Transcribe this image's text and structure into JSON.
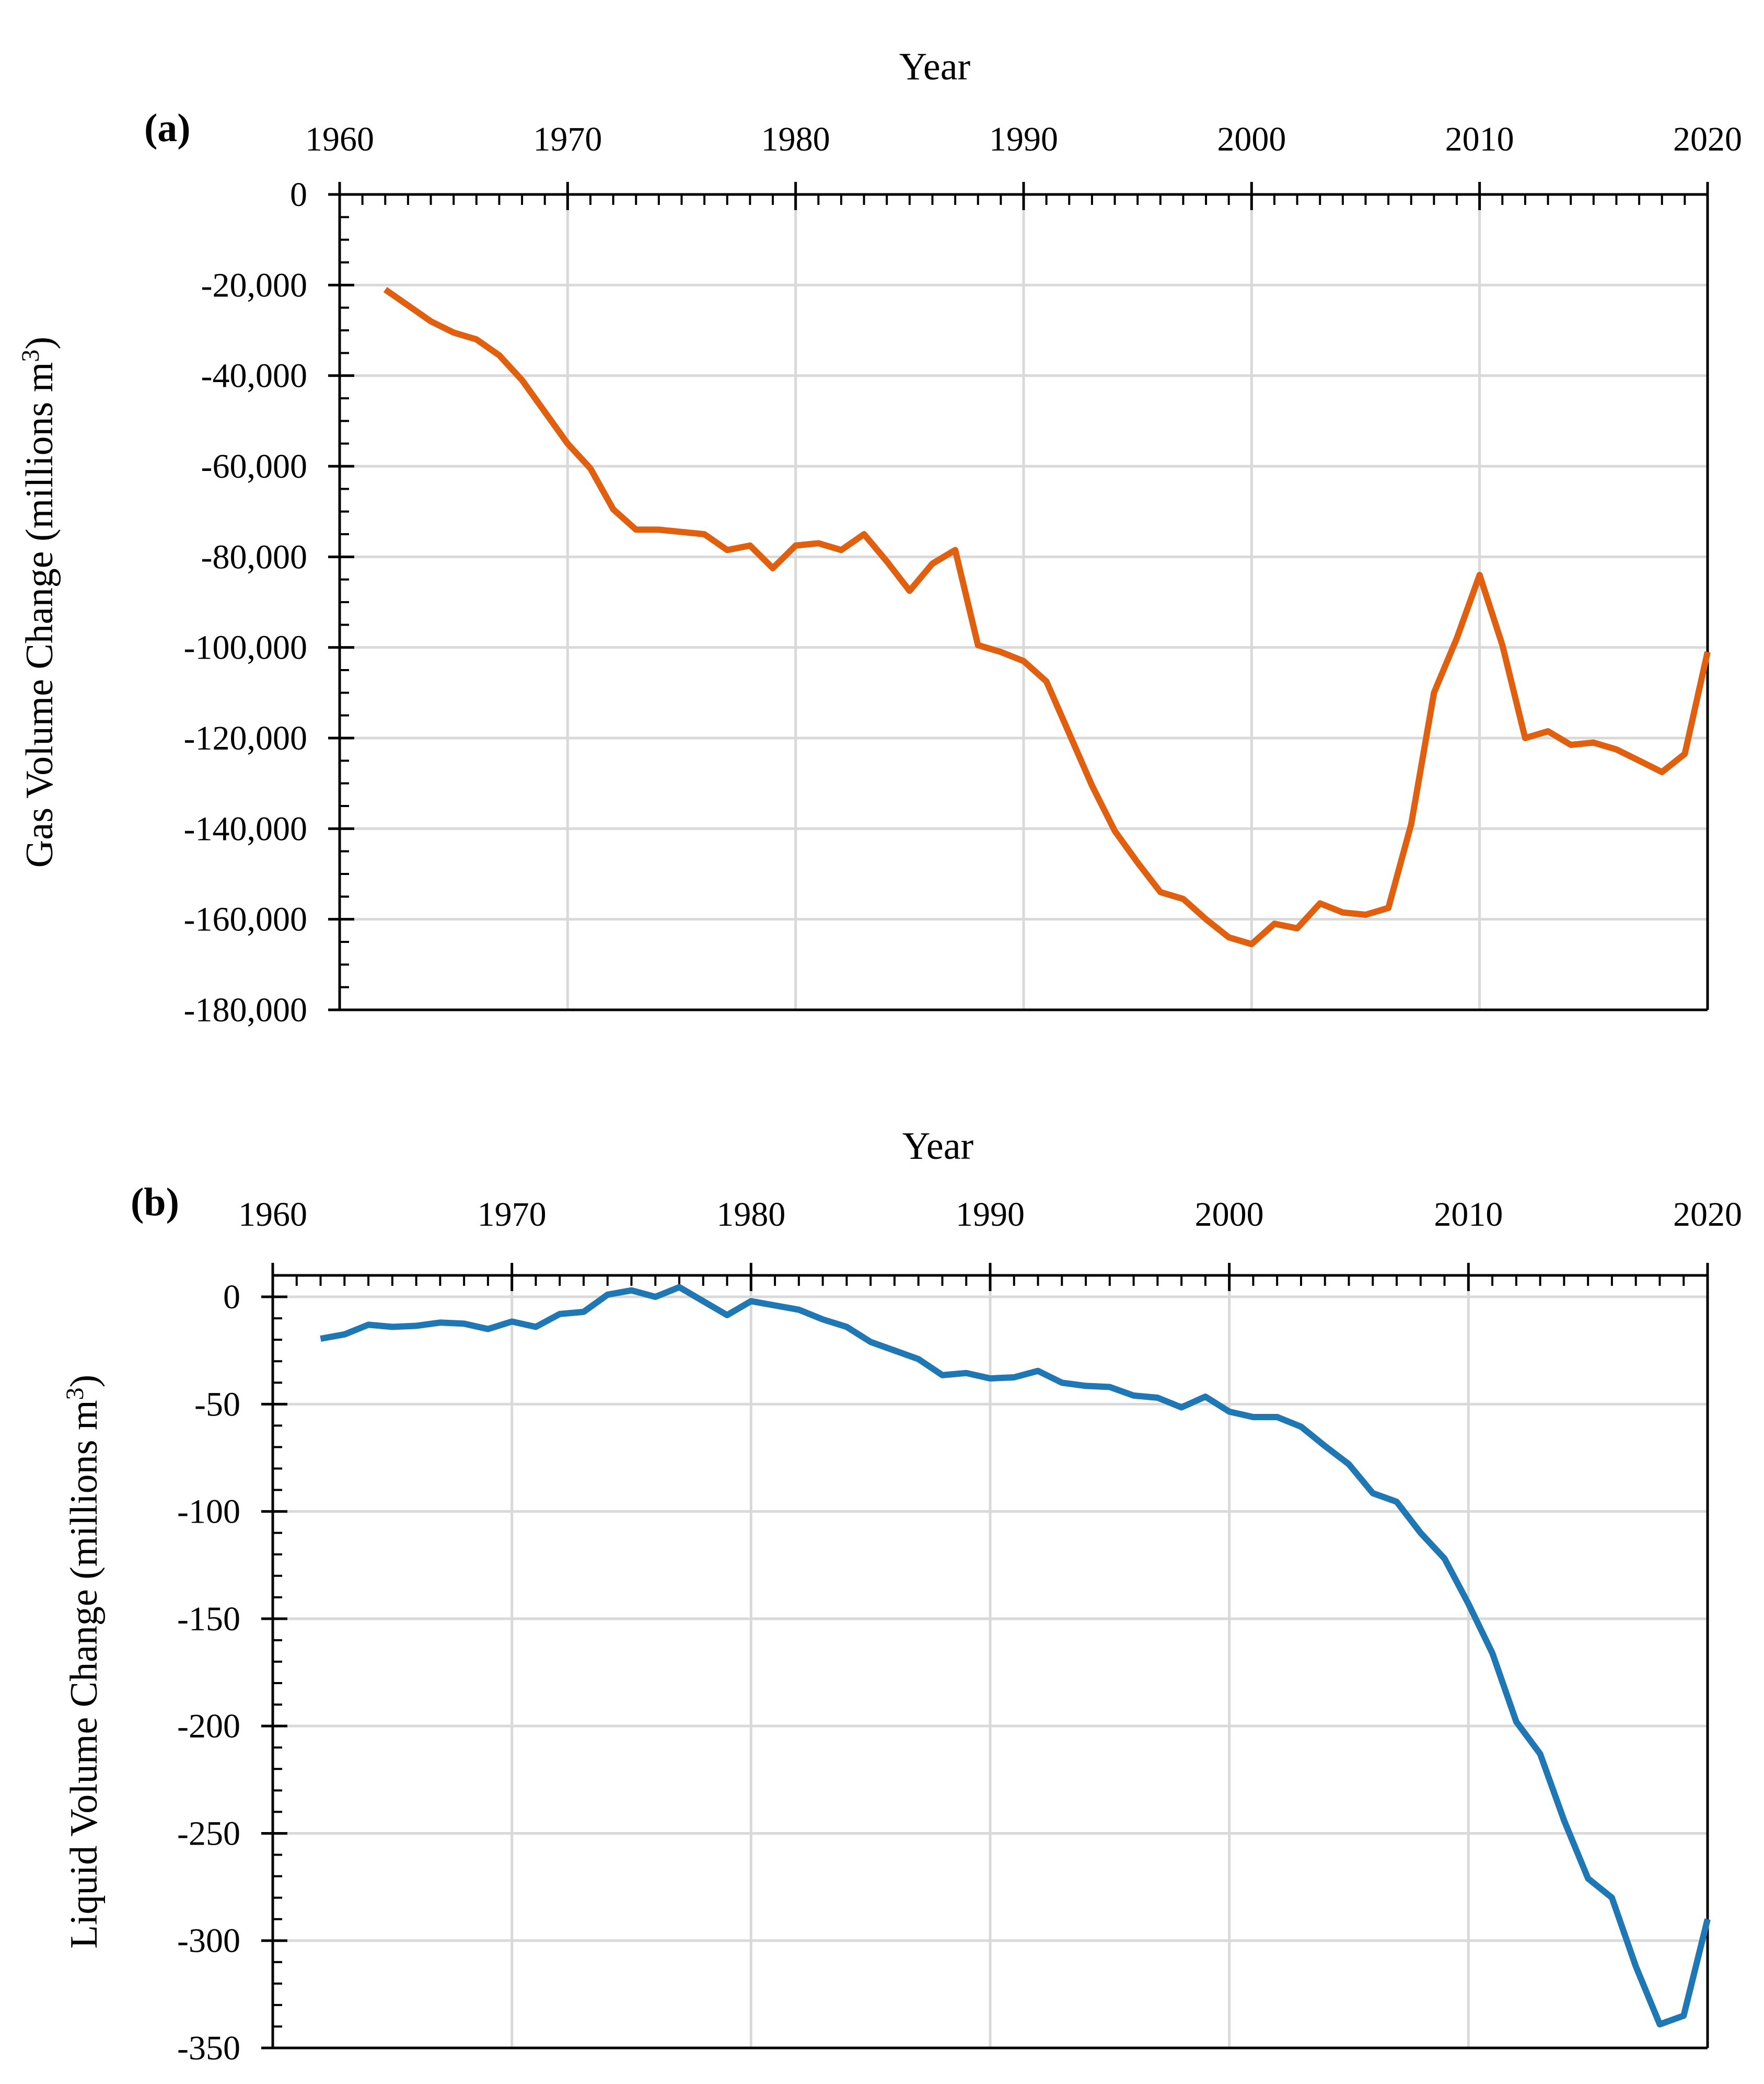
{
  "chart_data": [
    {
      "type": "line",
      "panel_label": "(a)",
      "xlabel": "Year",
      "ylabel": "Gas Volume Change (millions m",
      "ylabel_superscript": "3",
      "ylabel_suffix": ")",
      "xlim": [
        1960,
        2020
      ],
      "ylim": [
        -180000,
        0
      ],
      "x_ticks": [
        1960,
        1970,
        1980,
        1990,
        2000,
        2010,
        2020
      ],
      "x_tick_labels": [
        "1960",
        "1970",
        "1980",
        "1990",
        "2000",
        "2010",
        "2020"
      ],
      "y_ticks": [
        0,
        -20000,
        -40000,
        -60000,
        -80000,
        -100000,
        -120000,
        -140000,
        -160000,
        -180000
      ],
      "y_tick_labels": [
        "0",
        "-20,000",
        "-40,000",
        "-60,000",
        "-80,000",
        "-100,000",
        "-120,000",
        "-140,000",
        "-160,000",
        "-180,000"
      ],
      "x_axis_position": "top",
      "grid": true,
      "color": "#e06010",
      "series": [
        {
          "name": "Gas Volume Change",
          "x": [
            1962,
            1963,
            1964,
            1965,
            1966,
            1967,
            1968,
            1969,
            1970,
            1971,
            1972,
            1973,
            1974,
            1975,
            1976,
            1977,
            1978,
            1979,
            1980,
            1981,
            1982,
            1983,
            1984,
            1985,
            1986,
            1987,
            1988,
            1989,
            1990,
            1991,
            1992,
            1993,
            1994,
            1995,
            1996,
            1997,
            1998,
            1999,
            2000,
            2001,
            2002,
            2003,
            2004,
            2005,
            2006,
            2007,
            2008,
            2009,
            2010,
            2011,
            2012,
            2013,
            2014,
            2015,
            2016,
            2017,
            2018,
            2019,
            2020
          ],
          "values": [
            -21000,
            -24500,
            -28000,
            -30500,
            -32000,
            -35500,
            -41000,
            -48000,
            -55000,
            -60500,
            -69500,
            -74000,
            -74000,
            -74500,
            -75000,
            -78500,
            -77500,
            -82500,
            -77500,
            -77000,
            -78500,
            -75000,
            -81000,
            -87500,
            -81500,
            -78500,
            -99500,
            -101000,
            -103000,
            -107500,
            -119000,
            -130500,
            -140500,
            -147500,
            -154000,
            -155500,
            -160000,
            -164000,
            -165500,
            -161000,
            -162000,
            -156500,
            -158500,
            -159000,
            -157500,
            -139000,
            -110000,
            -98000,
            -84000,
            -99500,
            -120000,
            -118500,
            -121500,
            -121000,
            -122500,
            -125000,
            -127500,
            -123500,
            -101000
          ]
        }
      ]
    },
    {
      "type": "line",
      "panel_label": "(b)",
      "xlabel": "Year",
      "ylabel": "Liquid Volume Change (millions m",
      "ylabel_superscript": "3",
      "ylabel_suffix": ")",
      "xlim": [
        1960,
        2020
      ],
      "ylim": [
        -350,
        10
      ],
      "x_ticks": [
        1960,
        1970,
        1980,
        1990,
        2000,
        2010,
        2020
      ],
      "x_tick_labels": [
        "1960",
        "1970",
        "1980",
        "1990",
        "2000",
        "2010",
        "2020"
      ],
      "y_ticks": [
        0,
        -50,
        -100,
        -150,
        -200,
        -250,
        -300,
        -350
      ],
      "y_tick_labels": [
        "0",
        "-50",
        "-100",
        "-150",
        "-200",
        "-250",
        "-300",
        "-350"
      ],
      "x_axis_position": "top",
      "grid": true,
      "color": "#1f77b4",
      "series": [
        {
          "name": "Liquid Volume Change",
          "x": [
            1962,
            1963,
            1964,
            1965,
            1966,
            1967,
            1968,
            1969,
            1970,
            1971,
            1972,
            1973,
            1974,
            1975,
            1976,
            1977,
            1978,
            1979,
            1980,
            1981,
            1982,
            1983,
            1984,
            1985,
            1986,
            1987,
            1988,
            1989,
            1990,
            1991,
            1992,
            1993,
            1994,
            1995,
            1996,
            1997,
            1998,
            1999,
            2000,
            2001,
            2002,
            2003,
            2004,
            2005,
            2006,
            2007,
            2008,
            2009,
            2010,
            2011,
            2012,
            2013,
            2014,
            2015,
            2016,
            2017,
            2018,
            2019,
            2020
          ],
          "values": [
            -19.5,
            -17.5,
            -13,
            -14,
            -13.5,
            -12,
            -12.5,
            -15,
            -11.5,
            -14,
            -8,
            -7,
            1,
            3,
            0,
            4.5,
            -2,
            -8.5,
            -2,
            -4,
            -6,
            -10.5,
            -14,
            -21,
            -25,
            -29,
            -36.5,
            -35.5,
            -38,
            -37.5,
            -34.5,
            -40,
            -41.5,
            -42,
            -46,
            -47,
            -51.5,
            -46.5,
            -53.5,
            -56,
            -56,
            -60.5,
            -69.5,
            -78,
            -91.5,
            -95.5,
            -110,
            -122,
            -143,
            -166,
            -198,
            -213,
            -244,
            -271,
            -280,
            -312,
            -339,
            -335,
            -290
          ]
        }
      ]
    }
  ]
}
